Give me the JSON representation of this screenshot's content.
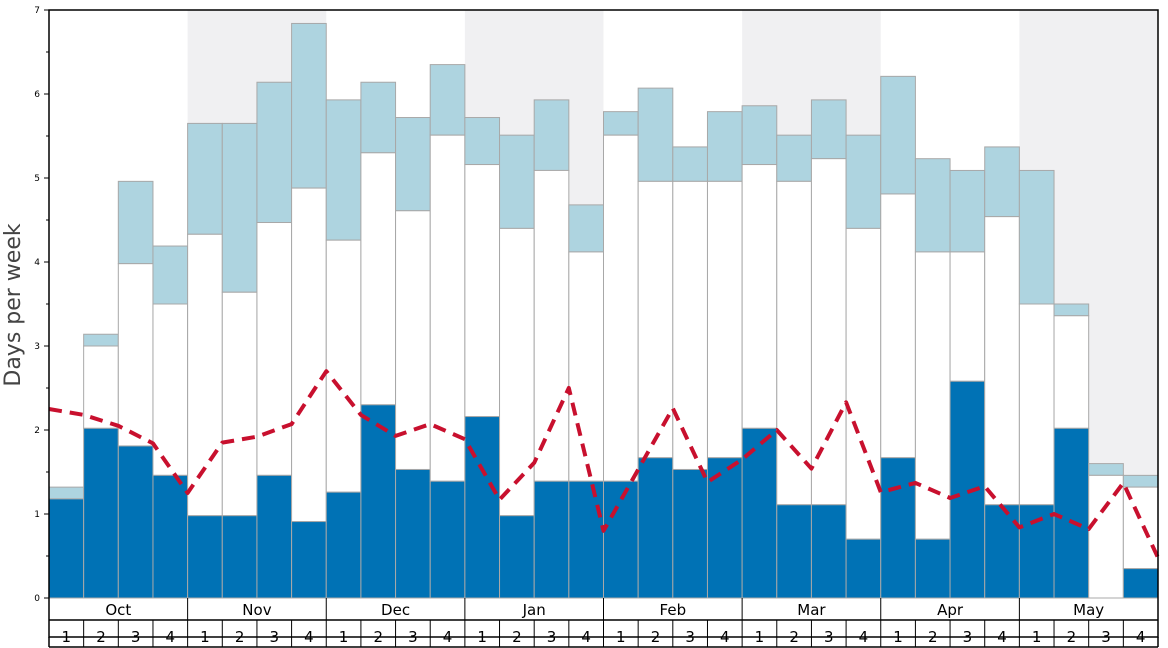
{
  "chart_data": {
    "type": "bar",
    "title": "",
    "ylabel": "Days per week",
    "xlabel": "",
    "ylim": [
      0,
      7
    ],
    "yticks": [
      "0",
      "1",
      "2",
      "3",
      "4",
      "5",
      "6",
      "7"
    ],
    "months": [
      "Oct",
      "Nov",
      "Dec",
      "Jan",
      "Feb",
      "Mar",
      "Apr",
      "May"
    ],
    "week_labels": [
      "1",
      "2",
      "3",
      "4"
    ],
    "colors": {
      "dark": "#0072b5",
      "light": "#aed4e0",
      "middle": "#ffffff",
      "line": "#c8102e",
      "shade": "#f0f0f2",
      "edge": "#a8a8a8"
    },
    "series": [
      {
        "name": "dark",
        "values": [
          1.18,
          2.02,
          1.81,
          1.46,
          0.98,
          0.98,
          1.46,
          0.91,
          1.26,
          2.3,
          1.53,
          1.39,
          2.16,
          0.98,
          1.39,
          1.39,
          1.39,
          1.67,
          1.53,
          1.67,
          2.02,
          1.11,
          1.11,
          0.7,
          1.67,
          0.7,
          2.58,
          1.11,
          1.11,
          2.02,
          0.0,
          0.35
        ]
      },
      {
        "name": "middle_top",
        "values": [
          1.18,
          3.0,
          3.98,
          3.5,
          4.33,
          3.64,
          4.47,
          4.88,
          4.26,
          5.3,
          4.61,
          5.51,
          5.16,
          4.4,
          5.09,
          4.12,
          5.51,
          4.96,
          4.96,
          4.96,
          5.16,
          4.96,
          5.23,
          4.4,
          4.81,
          4.12,
          4.12,
          4.54,
          3.5,
          3.36,
          1.46,
          1.32
        ]
      },
      {
        "name": "total",
        "values": [
          1.32,
          3.14,
          4.96,
          4.19,
          5.65,
          5.65,
          6.14,
          6.84,
          5.93,
          6.14,
          5.72,
          6.35,
          5.72,
          5.51,
          5.93,
          4.68,
          5.79,
          6.07,
          5.37,
          5.79,
          5.86,
          5.51,
          5.93,
          5.51,
          6.21,
          5.23,
          5.09,
          5.37,
          5.09,
          3.5,
          1.6,
          1.46
        ]
      },
      {
        "name": "average",
        "values": [
          2.25,
          2.18,
          2.05,
          1.84,
          1.25,
          1.85,
          1.92,
          2.07,
          2.7,
          2.18,
          1.93,
          2.07,
          1.89,
          1.17,
          1.61,
          2.5,
          0.8,
          1.53,
          2.26,
          1.38,
          1.65,
          2.0,
          1.54,
          2.33,
          1.26,
          1.37,
          1.19,
          1.33,
          0.84,
          1.0,
          0.82,
          1.37,
          0.48
        ]
      }
    ],
    "shaded_months": [
      "Nov",
      "Jan",
      "Mar",
      "May"
    ]
  }
}
